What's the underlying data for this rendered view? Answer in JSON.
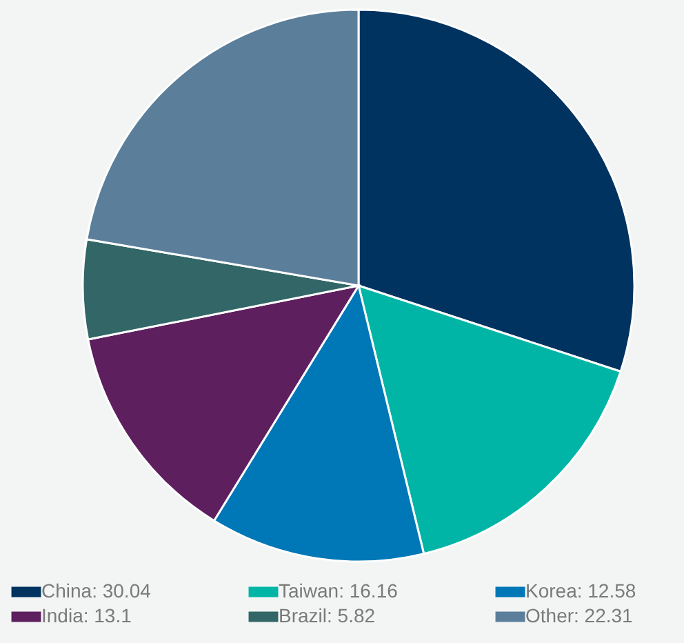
{
  "chart_data": {
    "type": "pie",
    "categories": [
      "China: 30.04",
      "Taiwan: 16.16",
      "Korea: 12.58",
      "India: 13.1",
      "Brazil: 5.82",
      "Other: 22.31"
    ],
    "values": [
      30.04,
      16.16,
      12.58,
      13.1,
      5.82,
      22.31
    ],
    "colors": [
      "#003360",
      "#00b5a6",
      "#0077b6",
      "#5d1f5e",
      "#336666",
      "#5b7f9b"
    ],
    "legend": "bottom"
  }
}
